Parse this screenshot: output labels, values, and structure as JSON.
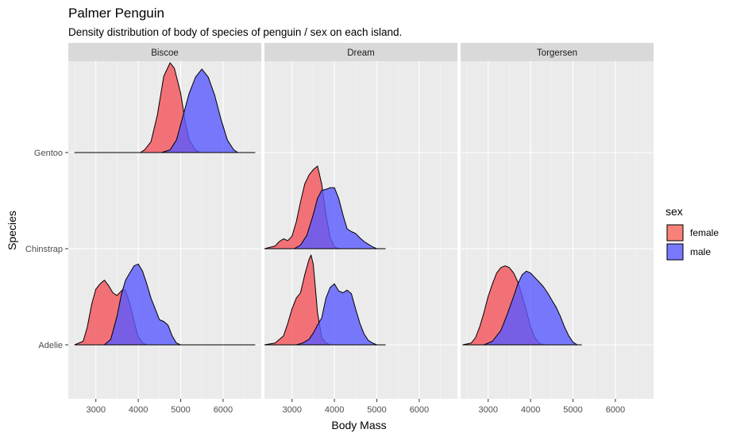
{
  "chart_data": {
    "type": "area",
    "title": "Palmer Penguin",
    "subtitle": "Density distribution of body of species of penguin / sex on each island.",
    "xlabel": "Body Mass",
    "ylabel": "Species",
    "xlim": [
      2350,
      6900
    ],
    "x_ticks": [
      3000,
      4000,
      5000,
      6000
    ],
    "x_tick_labels": [
      "3000",
      "4000",
      "5000",
      "6000"
    ],
    "species": [
      "Adelie",
      "Chinstrap",
      "Gentoo"
    ],
    "facets": [
      "Biscoe",
      "Dream",
      "Torgersen"
    ],
    "legend": {
      "title": "sex",
      "position": "right",
      "entries": [
        {
          "label": "female",
          "color": "#F8766D"
        },
        {
          "label": "male",
          "color": "#6B6BFF"
        }
      ]
    },
    "colors": {
      "female": "#F3525A",
      "male": "#5A5AFF",
      "overlap": "#7A2FC0",
      "panel_bg": "#EBEBEB",
      "strip_bg": "#D9D9D9",
      "grid": "#FFFFFF"
    },
    "grid": true,
    "ridges": [
      {
        "island": "Biscoe",
        "species": "Gentoo",
        "sex": "female",
        "x": [
          2500,
          4050,
          4150,
          4300,
          4450,
          4600,
          4750,
          4850,
          5000,
          5100,
          5200,
          5350,
          5450
        ],
        "height": [
          0,
          0,
          0.03,
          0.12,
          0.42,
          0.85,
          1.0,
          0.94,
          0.66,
          0.36,
          0.14,
          0.03,
          0
        ]
      },
      {
        "island": "Biscoe",
        "species": "Gentoo",
        "sex": "male",
        "x": [
          4550,
          4750,
          4900,
          5050,
          5200,
          5350,
          5500,
          5650,
          5800,
          5950,
          6100,
          6250,
          6350,
          6750
        ],
        "height": [
          0,
          0.03,
          0.14,
          0.4,
          0.66,
          0.84,
          0.93,
          0.84,
          0.64,
          0.37,
          0.14,
          0.03,
          0,
          0
        ]
      },
      {
        "island": "Biscoe",
        "species": "Adelie",
        "sex": "female",
        "x": [
          2500,
          2700,
          2800,
          2900,
          3000,
          3100,
          3200,
          3300,
          3400,
          3500,
          3600,
          3650,
          3700,
          3800,
          3900,
          4000,
          4100,
          4200
        ],
        "height": [
          0,
          0.04,
          0.2,
          0.45,
          0.62,
          0.68,
          0.72,
          0.66,
          0.58,
          0.55,
          0.6,
          0.62,
          0.6,
          0.46,
          0.26,
          0.09,
          0.02,
          0
        ]
      },
      {
        "island": "Biscoe",
        "species": "Adelie",
        "sex": "male",
        "x": [
          3200,
          3350,
          3500,
          3600,
          3700,
          3800,
          3900,
          4000,
          4100,
          4200,
          4300,
          4400,
          4500,
          4600,
          4700,
          4800,
          4900,
          5000,
          6750
        ],
        "height": [
          0,
          0.06,
          0.32,
          0.56,
          0.72,
          0.8,
          0.88,
          0.9,
          0.82,
          0.68,
          0.52,
          0.4,
          0.28,
          0.26,
          0.22,
          0.1,
          0.02,
          0,
          0
        ]
      },
      {
        "island": "Dream",
        "species": "Chinstrap",
        "sex": "female",
        "x": [
          2350,
          2600,
          2700,
          2800,
          2900,
          3000,
          3100,
          3200,
          3300,
          3400,
          3500,
          3600,
          3700,
          3800,
          3900,
          4000,
          4100
        ],
        "height": [
          0,
          0.03,
          0.08,
          0.11,
          0.09,
          0.14,
          0.3,
          0.52,
          0.72,
          0.82,
          0.88,
          0.92,
          0.72,
          0.38,
          0.12,
          0.02,
          0
        ]
      },
      {
        "island": "Dream",
        "species": "Chinstrap",
        "sex": "male",
        "x": [
          3050,
          3200,
          3350,
          3500,
          3600,
          3700,
          3800,
          3900,
          4000,
          4100,
          4200,
          4300,
          4400,
          4500,
          4600,
          4700,
          4800,
          4900,
          5000,
          5200
        ],
        "height": [
          0,
          0.04,
          0.15,
          0.38,
          0.56,
          0.65,
          0.66,
          0.68,
          0.68,
          0.56,
          0.38,
          0.22,
          0.19,
          0.17,
          0.12,
          0.08,
          0.05,
          0.02,
          0,
          0
        ]
      },
      {
        "island": "Dream",
        "species": "Adelie",
        "sex": "female",
        "x": [
          2350,
          2600,
          2800,
          2900,
          3000,
          3100,
          3200,
          3300,
          3400,
          3450,
          3500,
          3550,
          3600,
          3700,
          3800,
          3900
        ],
        "height": [
          0,
          0.02,
          0.1,
          0.24,
          0.4,
          0.52,
          0.58,
          0.78,
          0.95,
          1.0,
          0.9,
          0.64,
          0.36,
          0.08,
          0.02,
          0
        ]
      },
      {
        "island": "Dream",
        "species": "Adelie",
        "sex": "male",
        "x": [
          3100,
          3250,
          3400,
          3500,
          3600,
          3700,
          3800,
          3900,
          4000,
          4100,
          4200,
          4300,
          4400,
          4500,
          4600,
          4700,
          4800,
          4900,
          5000,
          5200
        ],
        "height": [
          0,
          0.02,
          0.06,
          0.13,
          0.22,
          0.3,
          0.52,
          0.64,
          0.68,
          0.6,
          0.58,
          0.61,
          0.57,
          0.4,
          0.24,
          0.12,
          0.05,
          0.02,
          0,
          0
        ]
      },
      {
        "island": "Torgersen",
        "species": "Adelie",
        "sex": "female",
        "x": [
          2400,
          2600,
          2700,
          2800,
          2900,
          3000,
          3100,
          3200,
          3300,
          3400,
          3500,
          3600,
          3700,
          3800,
          3900,
          4000,
          4100,
          4200,
          4300
        ],
        "height": [
          0,
          0.02,
          0.08,
          0.2,
          0.36,
          0.54,
          0.68,
          0.8,
          0.86,
          0.88,
          0.86,
          0.8,
          0.7,
          0.55,
          0.38,
          0.2,
          0.08,
          0.02,
          0
        ]
      },
      {
        "island": "Torgersen",
        "species": "Adelie",
        "sex": "male",
        "x": [
          2900,
          3100,
          3300,
          3450,
          3600,
          3700,
          3800,
          3900,
          4000,
          4100,
          4200,
          4300,
          4400,
          4500,
          4600,
          4700,
          4800,
          4900,
          5000,
          5100,
          5200
        ],
        "height": [
          0,
          0.04,
          0.16,
          0.34,
          0.54,
          0.68,
          0.78,
          0.82,
          0.8,
          0.75,
          0.7,
          0.65,
          0.58,
          0.5,
          0.42,
          0.32,
          0.2,
          0.1,
          0.03,
          0,
          0
        ]
      }
    ]
  }
}
